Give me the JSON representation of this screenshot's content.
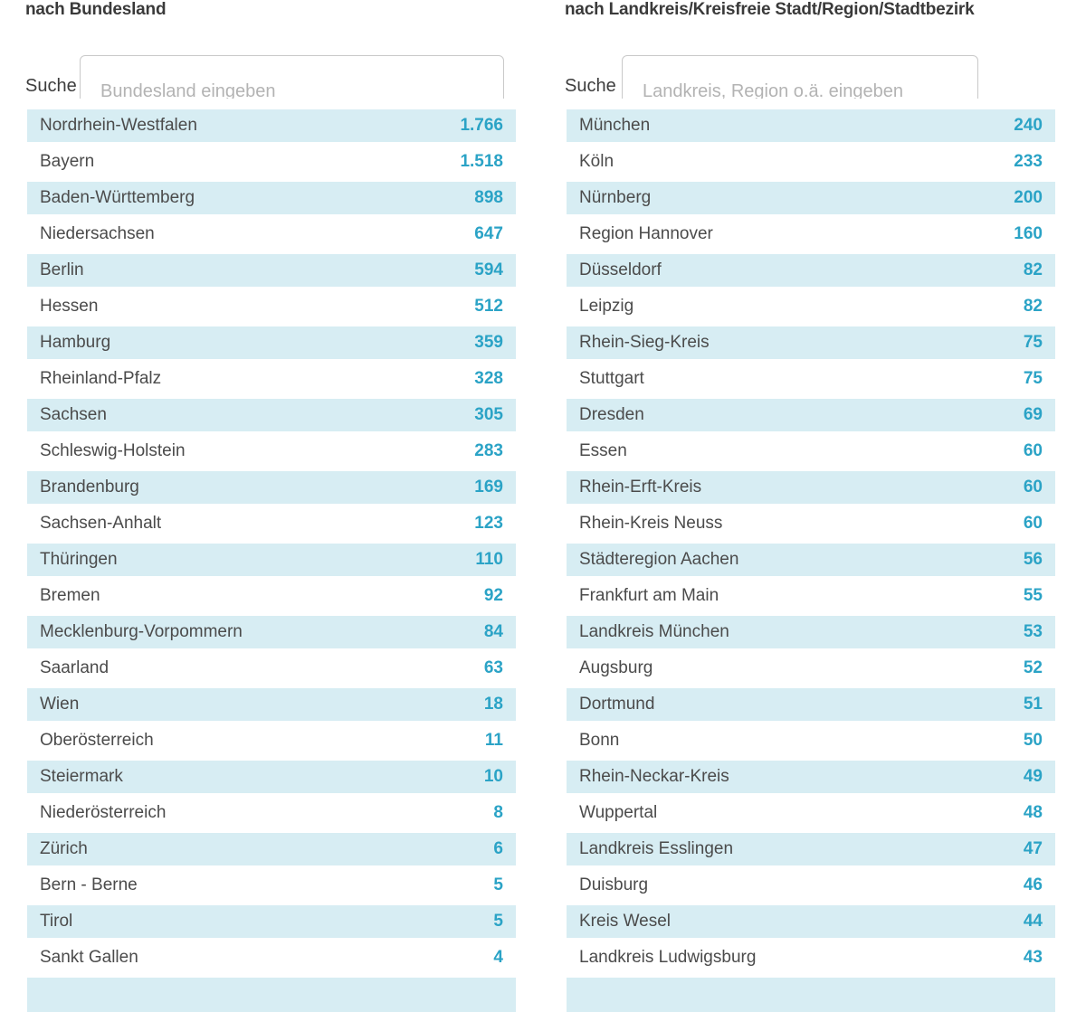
{
  "colors": {
    "accent": "#2ba3c6",
    "stripe": "#d7edf3",
    "text": "#4b4b4b",
    "title": "#3a3a3a"
  },
  "left_panel": {
    "title": "nach Bundesland",
    "search_label": "Suche",
    "search_placeholder": "Bundesland eingeben",
    "rows": [
      {
        "label": "Nordrhein-Westfalen",
        "value": "1.766"
      },
      {
        "label": "Bayern",
        "value": "1.518"
      },
      {
        "label": "Baden-Württemberg",
        "value": "898"
      },
      {
        "label": "Niedersachsen",
        "value": "647"
      },
      {
        "label": "Berlin",
        "value": "594"
      },
      {
        "label": "Hessen",
        "value": "512"
      },
      {
        "label": "Hamburg",
        "value": "359"
      },
      {
        "label": "Rheinland-Pfalz",
        "value": "328"
      },
      {
        "label": "Sachsen",
        "value": "305"
      },
      {
        "label": "Schleswig-Holstein",
        "value": "283"
      },
      {
        "label": "Brandenburg",
        "value": "169"
      },
      {
        "label": "Sachsen-Anhalt",
        "value": "123"
      },
      {
        "label": "Thüringen",
        "value": "110"
      },
      {
        "label": "Bremen",
        "value": "92"
      },
      {
        "label": "Mecklenburg-Vorpommern",
        "value": "84"
      },
      {
        "label": "Saarland",
        "value": "63"
      },
      {
        "label": "Wien",
        "value": "18"
      },
      {
        "label": "Oberösterreich",
        "value": "11"
      },
      {
        "label": "Steiermark",
        "value": "10"
      },
      {
        "label": "Niederösterreich",
        "value": "8"
      },
      {
        "label": "Zürich",
        "value": "6"
      },
      {
        "label": "Bern - Berne",
        "value": "5"
      },
      {
        "label": "Tirol",
        "value": "5"
      },
      {
        "label": "Sankt Gallen",
        "value": "4"
      }
    ]
  },
  "right_panel": {
    "title": "nach Landkreis/Kreisfreie Stadt/Region/Stadtbezirk",
    "search_label": "Suche",
    "search_placeholder": "Landkreis, Region o.ä. eingeben",
    "rows": [
      {
        "label": "München",
        "value": "240"
      },
      {
        "label": "Köln",
        "value": "233"
      },
      {
        "label": "Nürnberg",
        "value": "200"
      },
      {
        "label": "Region Hannover",
        "value": "160"
      },
      {
        "label": "Düsseldorf",
        "value": "82"
      },
      {
        "label": "Leipzig",
        "value": "82"
      },
      {
        "label": "Rhein-Sieg-Kreis",
        "value": "75"
      },
      {
        "label": "Stuttgart",
        "value": "75"
      },
      {
        "label": "Dresden",
        "value": "69"
      },
      {
        "label": "Essen",
        "value": "60"
      },
      {
        "label": "Rhein-Erft-Kreis",
        "value": "60"
      },
      {
        "label": "Rhein-Kreis Neuss",
        "value": "60"
      },
      {
        "label": "Städteregion Aachen",
        "value": "56"
      },
      {
        "label": "Frankfurt am Main",
        "value": "55"
      },
      {
        "label": "Landkreis München",
        "value": "53"
      },
      {
        "label": "Augsburg",
        "value": "52"
      },
      {
        "label": "Dortmund",
        "value": "51"
      },
      {
        "label": "Bonn",
        "value": "50"
      },
      {
        "label": "Rhein-Neckar-Kreis",
        "value": "49"
      },
      {
        "label": "Wuppertal",
        "value": "48"
      },
      {
        "label": "Landkreis Esslingen",
        "value": "47"
      },
      {
        "label": "Duisburg",
        "value": "46"
      },
      {
        "label": "Kreis Wesel",
        "value": "44"
      },
      {
        "label": "Landkreis Ludwigsburg",
        "value": "43"
      }
    ]
  }
}
